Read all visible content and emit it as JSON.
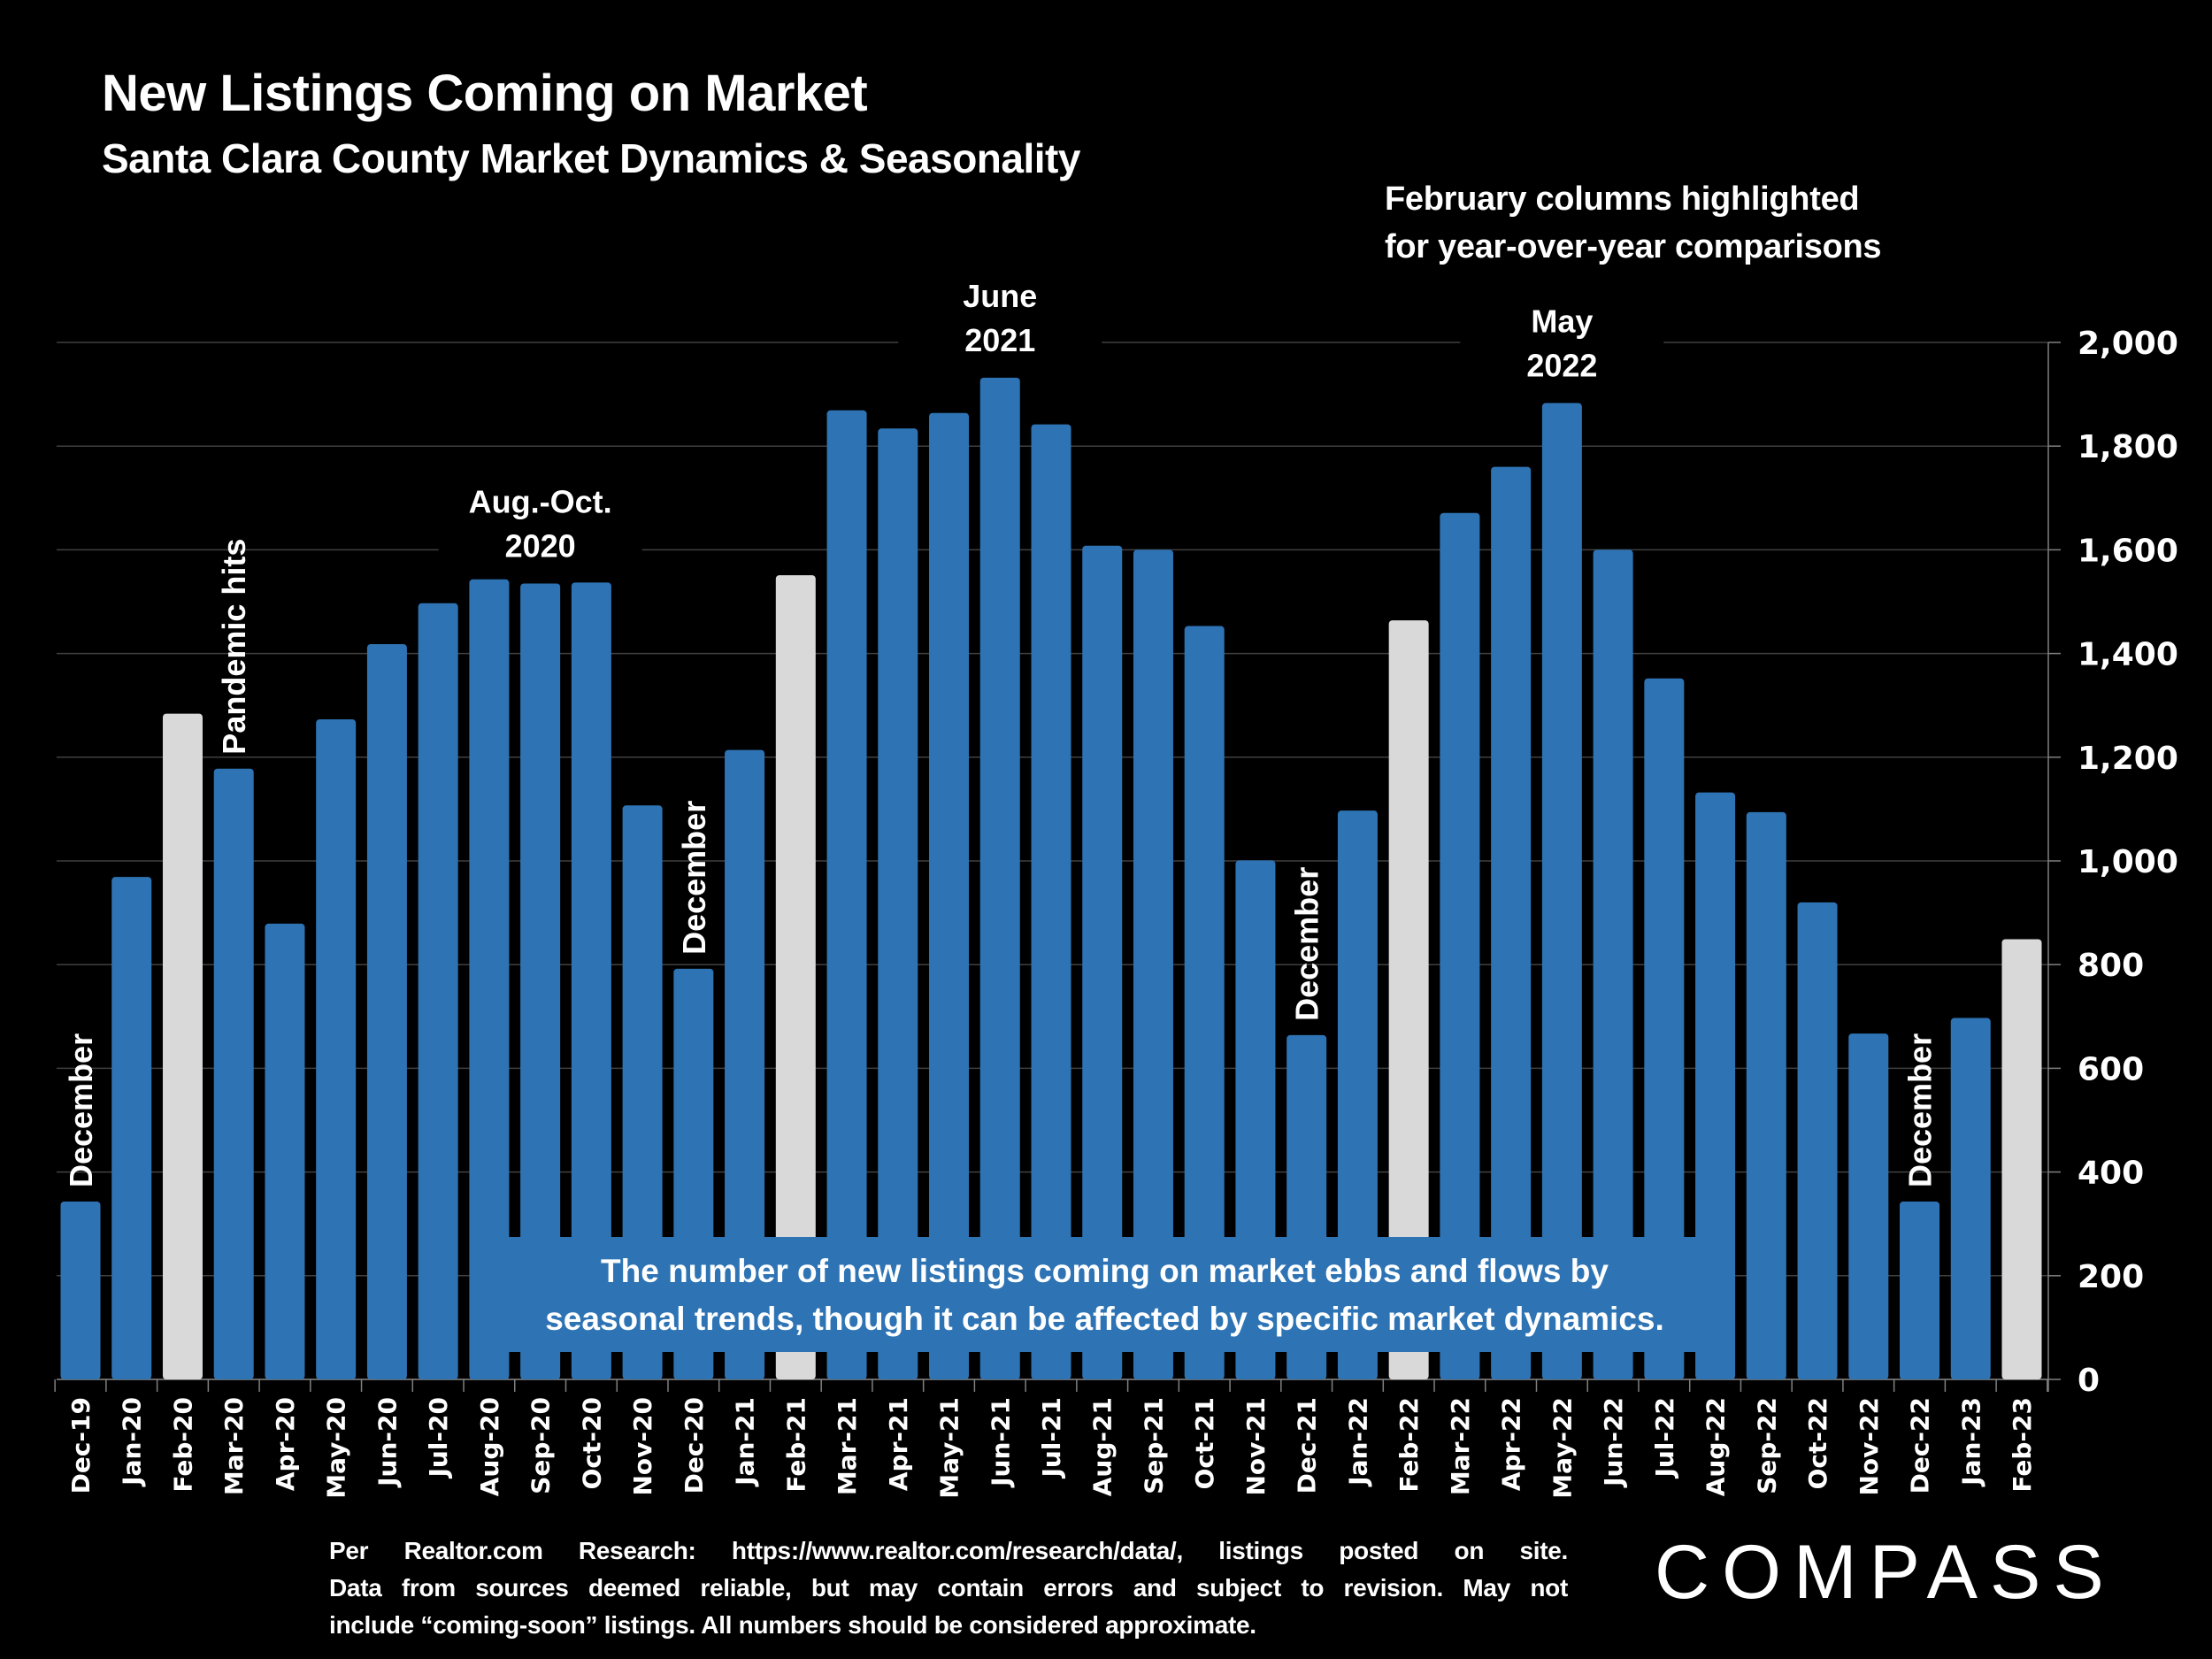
{
  "header": {
    "title": "New Listings Coming on Market",
    "subtitle": "Santa Clara County Market Dynamics & Seasonality",
    "note_line1": "February columns highlighted",
    "note_line2": "for year-over-year comparisons"
  },
  "callout": {
    "line1": "The number of new listings coming on market ebbs and flows by",
    "line2": "seasonal trends, though it can be affected by specific market dynamics."
  },
  "footer": {
    "line1": "Per Realtor.com Research:  https://www.realtor.com/research/data/, listings posted on site.",
    "line2": "Data from sources deemed reliable, but may contain errors and subject to revision. May not",
    "line3": "include “coming-soon” listings. All numbers should be considered approximate."
  },
  "logo": {
    "text": "COMPASS"
  },
  "colors": {
    "bar": "#2e74b5",
    "highlight": "#d9d9d9",
    "background": "#000000",
    "grid": "#404040"
  },
  "chart_data": {
    "type": "bar",
    "title": "New Listings Coming on Market",
    "subtitle": "Santa Clara County Market Dynamics & Seasonality",
    "xlabel": "",
    "ylabel": "",
    "ylim": [
      0,
      2000
    ],
    "yticks": [
      0,
      200,
      400,
      600,
      800,
      1000,
      1200,
      1400,
      1600,
      1800,
      2000
    ],
    "ytick_labels": [
      "0",
      "200",
      "400",
      "600",
      "800",
      "1,000",
      "1,200",
      "1,400",
      "1,600",
      "1,800",
      "2,000"
    ],
    "y_axis_side": "right",
    "grid": true,
    "categories": [
      "Dec-19",
      "Jan-20",
      "Feb-20",
      "Mar-20",
      "Apr-20",
      "May-20",
      "Jun-20",
      "Jul-20",
      "Aug-20",
      "Sep-20",
      "Oct-20",
      "Nov-20",
      "Dec-20",
      "Jan-21",
      "Feb-21",
      "Mar-21",
      "Apr-21",
      "May-21",
      "Jun-21",
      "Jul-21",
      "Aug-21",
      "Sep-21",
      "Oct-21",
      "Nov-21",
      "Dec-21",
      "Jan-22",
      "Feb-22",
      "Mar-22",
      "Apr-22",
      "May-22",
      "Jun-22",
      "Jul-22",
      "Aug-22",
      "Sep-22",
      "Oct-22",
      "Nov-22",
      "Dec-22",
      "Jan-23",
      "Feb-23"
    ],
    "values": [
      343,
      969,
      1284,
      1178,
      879,
      1273,
      1418,
      1497,
      1543,
      1535,
      1537,
      1107,
      792,
      1214,
      1551,
      1869,
      1834,
      1864,
      1932,
      1842,
      1608,
      1600,
      1453,
      1001,
      664,
      1097,
      1464,
      1671,
      1760,
      1883,
      1600,
      1352,
      1132,
      1094,
      920,
      667,
      343,
      697,
      849
    ],
    "highlighted": [
      "Feb-20",
      "Feb-21",
      "Feb-22",
      "Feb-23"
    ],
    "annotations": [
      {
        "text": "December",
        "at": "Dec-19",
        "orientation": "vertical"
      },
      {
        "text": "Pandemic hits",
        "at": "Mar-20",
        "orientation": "vertical"
      },
      {
        "text": "Aug.-Oct. 2020",
        "at": "Sep-20",
        "orientation": "horizontal"
      },
      {
        "text": "December",
        "at": "Dec-20",
        "orientation": "vertical"
      },
      {
        "text": "June 2021",
        "at": "Jun-21",
        "orientation": "horizontal"
      },
      {
        "text": "December",
        "at": "Dec-21",
        "orientation": "vertical"
      },
      {
        "text": "May 2022",
        "at": "May-22",
        "orientation": "horizontal"
      },
      {
        "text": "December",
        "at": "Dec-22",
        "orientation": "vertical"
      }
    ]
  }
}
